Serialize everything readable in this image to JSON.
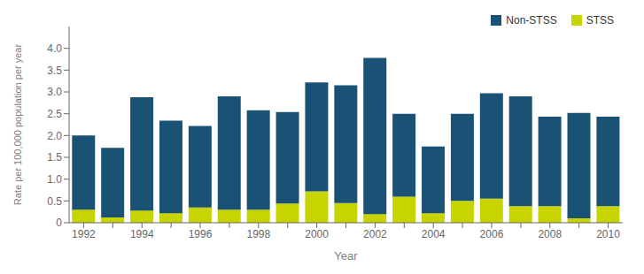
{
  "chart_data": {
    "type": "bar",
    "stacked": true,
    "xlabel": "Year",
    "ylabel": "Rate per 100,000 population per year",
    "categories": [
      1992,
      null,
      1994,
      null,
      1996,
      null,
      1998,
      null,
      2000,
      null,
      2002,
      null,
      2004,
      null,
      2006,
      null,
      2008,
      null,
      2010
    ],
    "series": [
      {
        "name": "STSS",
        "color": "#c8d400",
        "values": [
          0.3,
          0.12,
          0.28,
          0.22,
          0.35,
          0.3,
          0.3,
          0.44,
          0.72,
          0.45,
          0.2,
          0.6,
          0.22,
          0.5,
          0.55,
          0.38,
          0.38,
          0.1,
          0.38
        ]
      },
      {
        "name": "Non-STSS",
        "color": "#1a5276",
        "values": [
          1.7,
          1.6,
          2.6,
          2.12,
          1.87,
          2.6,
          2.28,
          2.1,
          2.5,
          2.7,
          3.58,
          1.9,
          1.53,
          2.0,
          2.42,
          2.52,
          2.05,
          2.42,
          2.05
        ]
      }
    ],
    "ylim": [
      0,
      4.5
    ],
    "yticks": [
      0,
      0.5,
      {
        "value": 1.0,
        "label": "1.0"
      },
      1.5,
      {
        "value": 2.0,
        "label": "2.0"
      },
      2.5,
      {
        "value": 3.0,
        "label": "3.0"
      },
      3.5,
      {
        "value": 4.0,
        "label": "4.0"
      }
    ],
    "grid": false,
    "legend": "upper right"
  }
}
